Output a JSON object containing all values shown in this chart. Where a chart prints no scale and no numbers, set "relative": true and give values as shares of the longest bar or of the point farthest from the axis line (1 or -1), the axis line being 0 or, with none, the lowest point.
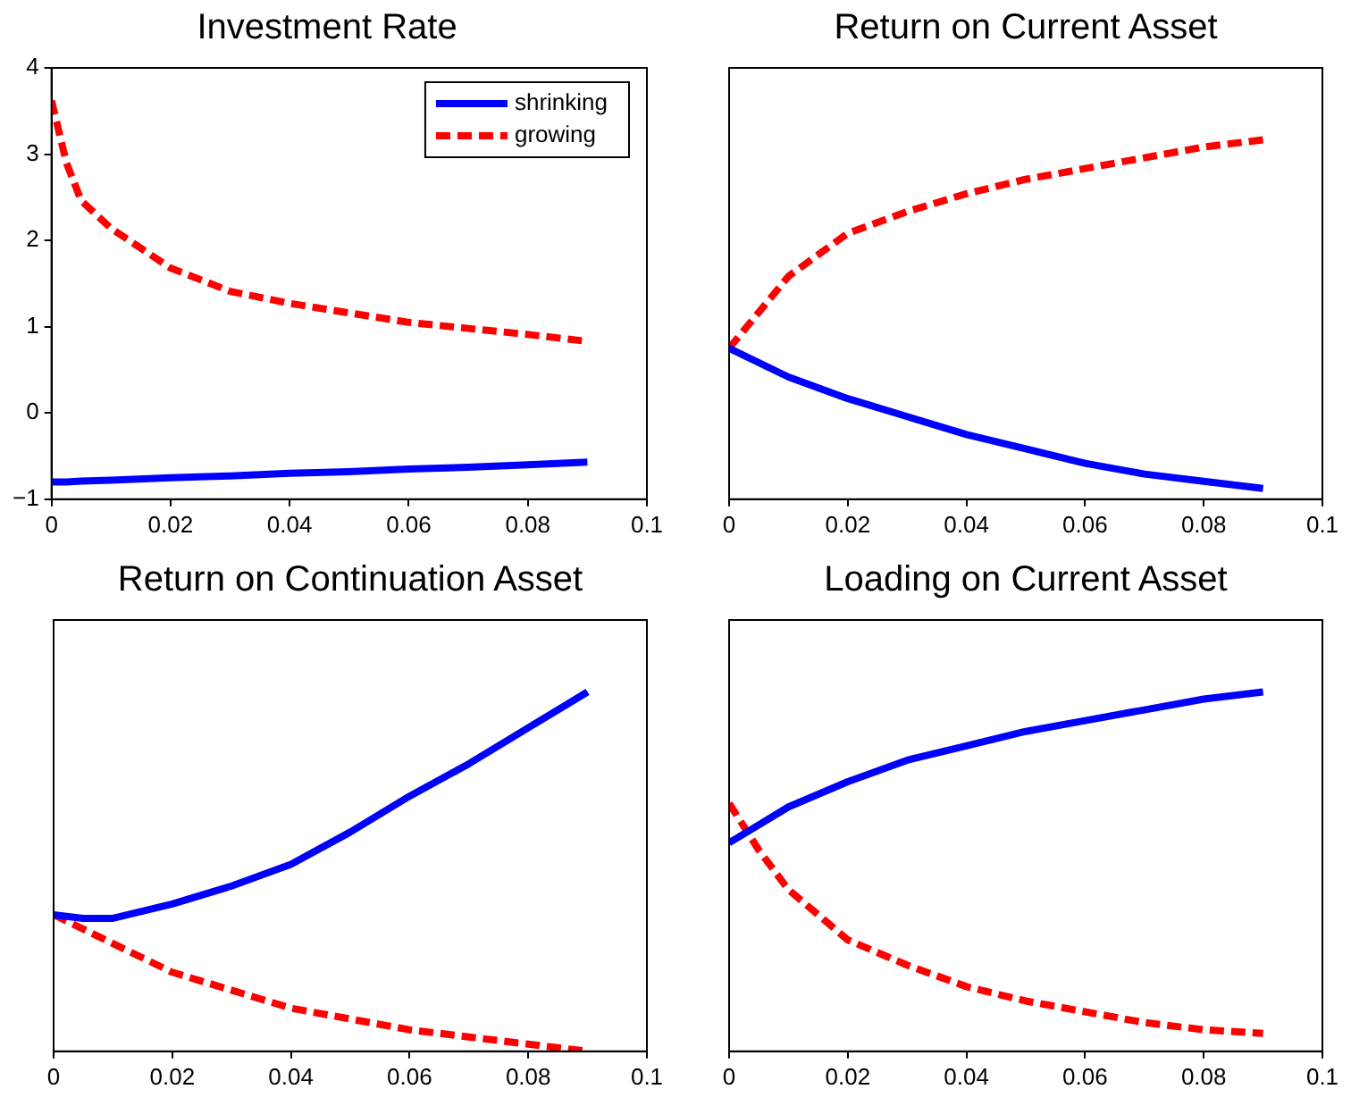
{
  "chart_data": [
    {
      "type": "line",
      "title": "Investment Rate",
      "x": [
        0,
        0.0025,
        0.005,
        0.01,
        0.02,
        0.03,
        0.04,
        0.05,
        0.06,
        0.07,
        0.08,
        0.09
      ],
      "xlim": [
        0,
        0.1
      ],
      "xticks": [
        0,
        0.02,
        0.04,
        0.06,
        0.08,
        0.1
      ],
      "ylim": [
        -1,
        4
      ],
      "yticks": [
        {
          "value": -1,
          "label": "−1"
        },
        0,
        1,
        2,
        3,
        4
      ],
      "legend": "top right",
      "grid": false,
      "series": [
        {
          "name": "shrinking",
          "color": "#0000ff",
          "line_style": "solid",
          "values": [
            -0.8,
            -0.8,
            -0.79,
            -0.78,
            -0.75,
            -0.73,
            -0.7,
            -0.68,
            -0.65,
            -0.63,
            -0.6,
            -0.57
          ]
        },
        {
          "name": "growing",
          "color": "#ff0000",
          "line_style": "dashed",
          "values": [
            3.62,
            2.9,
            2.46,
            2.14,
            1.68,
            1.41,
            1.27,
            1.16,
            1.05,
            0.98,
            0.91,
            0.83
          ]
        }
      ]
    },
    {
      "type": "line",
      "title": "Return on Current Asset",
      "relative": true,
      "x": [
        0,
        0.01,
        0.02,
        0.03,
        0.04,
        0.05,
        0.06,
        0.07,
        0.08,
        0.09
      ],
      "xlim": [
        0,
        0.1
      ],
      "xticks": [
        0,
        0.02,
        0.04,
        0.06,
        0.08,
        0.1
      ],
      "grid": false,
      "series": [
        {
          "color": "#0000ff",
          "line_style": "solid",
          "values": [
            0.42,
            0.34,
            0.28,
            0.23,
            0.18,
            0.14,
            0.1,
            0.07,
            0.05,
            0.03
          ]
        },
        {
          "color": "#ff0000",
          "line_style": "dashed",
          "values": [
            0.42,
            0.62,
            0.74,
            0.8,
            0.85,
            0.89,
            0.92,
            0.95,
            0.98,
            1
          ]
        }
      ]
    },
    {
      "type": "line",
      "title": "Return on Continuation Asset",
      "relative": true,
      "x": [
        0,
        0.005,
        0.01,
        0.02,
        0.03,
        0.04,
        0.05,
        0.06,
        0.07,
        0.08,
        0.09
      ],
      "xlim": [
        0,
        0.1
      ],
      "xticks": [
        0,
        0.02,
        0.04,
        0.06,
        0.08,
        0.1
      ],
      "grid": false,
      "series": [
        {
          "color": "#0000ff",
          "line_style": "solid",
          "values": [
            0.38,
            0.37,
            0.37,
            0.41,
            0.46,
            0.52,
            0.61,
            0.71,
            0.8,
            0.9,
            1
          ]
        },
        {
          "color": "#ff0000",
          "line_style": "dashed",
          "values": [
            0.38,
            0.34,
            0.3,
            0.22,
            0.17,
            0.12,
            0.09,
            0.06,
            0.04,
            0.02,
            0
          ]
        }
      ]
    },
    {
      "type": "line",
      "title": "Loading on Current Asset",
      "relative": true,
      "x": [
        0,
        0.005,
        0.01,
        0.02,
        0.03,
        0.04,
        0.05,
        0.06,
        0.07,
        0.08,
        0.09
      ],
      "xlim": [
        0,
        0.1
      ],
      "xticks": [
        0,
        0.02,
        0.04,
        0.06,
        0.08,
        0.1
      ],
      "grid": false,
      "series": [
        {
          "color": "#0000ff",
          "line_style": "solid",
          "values": [
            0.58,
            0.63,
            0.68,
            0.75,
            0.81,
            0.85,
            0.89,
            0.92,
            0.95,
            0.98,
            1
          ]
        },
        {
          "color": "#ff0000",
          "line_style": "dashed",
          "values": [
            0.69,
            0.56,
            0.45,
            0.31,
            0.24,
            0.18,
            0.14,
            0.11,
            0.08,
            0.06,
            0.05
          ]
        }
      ]
    }
  ]
}
